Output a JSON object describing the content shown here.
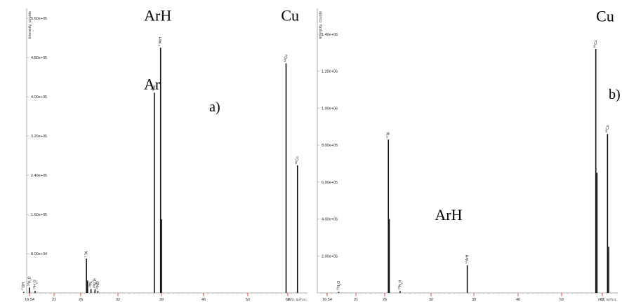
{
  "colors": {
    "axis": "#9a9a9a",
    "peak": "#111111",
    "tick_red": "#e23b2e",
    "background": "#ffffff"
  },
  "chart_data": [
    {
      "type": "line",
      "panel_label": "a)",
      "ylabel": "Intensity, counts",
      "xlabel": "m/z, a.m.u.",
      "xlim": [
        16.54,
        67
      ],
      "ylim": [
        0,
        580000
      ],
      "x_ticks": [
        "16.54",
        "21",
        "26",
        "32",
        "39",
        "46",
        "53",
        "62"
      ],
      "y_ticks": [
        "8.00e+04",
        "1.60e+05",
        "2.40e+05",
        "3.20e+05",
        "4.00e+05",
        "4.80e+05",
        "5.60e+05"
      ],
      "annotations": [
        {
          "text": "ArH",
          "x": 40.5,
          "y": 555000
        },
        {
          "text": "Cu",
          "x": 63.7,
          "y": 555000
        },
        {
          "text": "Ar",
          "x": 39.5,
          "y": 415000
        },
        {
          "text": "a)",
          "x": 50.5,
          "y": 370000
        }
      ],
      "peaks": [
        {
          "x": 17.0,
          "y": 2000,
          "label": "17OH"
        },
        {
          "x": 18.0,
          "y": 11000,
          "label": "18H2O"
        },
        {
          "x": 19.0,
          "y": 4000,
          "label": "19H3O"
        },
        {
          "x": 28.0,
          "y": 70000,
          "label": "27Al"
        },
        {
          "x": 28.2,
          "y": 25000
        },
        {
          "x": 28.8,
          "y": 8000,
          "label": "28N2"
        },
        {
          "x": 29.5,
          "y": 7000,
          "label": "29N2H"
        },
        {
          "x": 30.0,
          "y": 4000,
          "label": "30NO"
        },
        {
          "x": 39.9,
          "y": 408000,
          "label": "40Ar"
        },
        {
          "x": 41.0,
          "y": 500000,
          "label": "41ArH"
        },
        {
          "x": 41.15,
          "y": 150000
        },
        {
          "x": 63.0,
          "y": 468000,
          "label": "63Cu"
        },
        {
          "x": 65.0,
          "y": 260000,
          "label": "65Cu"
        }
      ]
    },
    {
      "type": "line",
      "panel_label": "b)",
      "ylabel": "Intensity, counts",
      "xlabel": "m/z, a.m.u.",
      "xlim": [
        16.54,
        67
      ],
      "ylim": [
        0,
        1540000
      ],
      "x_ticks": [
        "16.54",
        "21",
        "26",
        "32",
        "39",
        "46",
        "53",
        "62"
      ],
      "y_ticks": [
        "2.00e+05",
        "4.00e+05",
        "6.00e+05",
        "8.00e+05",
        "1.00e+06",
        "1.20e+06",
        "1.40e+06"
      ],
      "annotations": [
        {
          "text": "Cu",
          "x": 64.6,
          "y": 1470000
        },
        {
          "text": "b)",
          "x": 66.2,
          "y": 1050000
        },
        {
          "text": "ArH",
          "x": 37.8,
          "y": 395000
        }
      ],
      "peaks": [
        {
          "x": 19.0,
          "y": 5000,
          "label": "19H3O"
        },
        {
          "x": 27.5,
          "y": 830000,
          "label": "27Al"
        },
        {
          "x": 27.65,
          "y": 400000
        },
        {
          "x": 29.5,
          "y": 10000,
          "label": "29N2H"
        },
        {
          "x": 41.0,
          "y": 150000,
          "label": "41ArH"
        },
        {
          "x": 63.0,
          "y": 1320000,
          "label": "63Cu"
        },
        {
          "x": 63.2,
          "y": 650000
        },
        {
          "x": 65.0,
          "y": 860000,
          "label": "65Cu"
        },
        {
          "x": 65.2,
          "y": 250000
        }
      ]
    }
  ]
}
